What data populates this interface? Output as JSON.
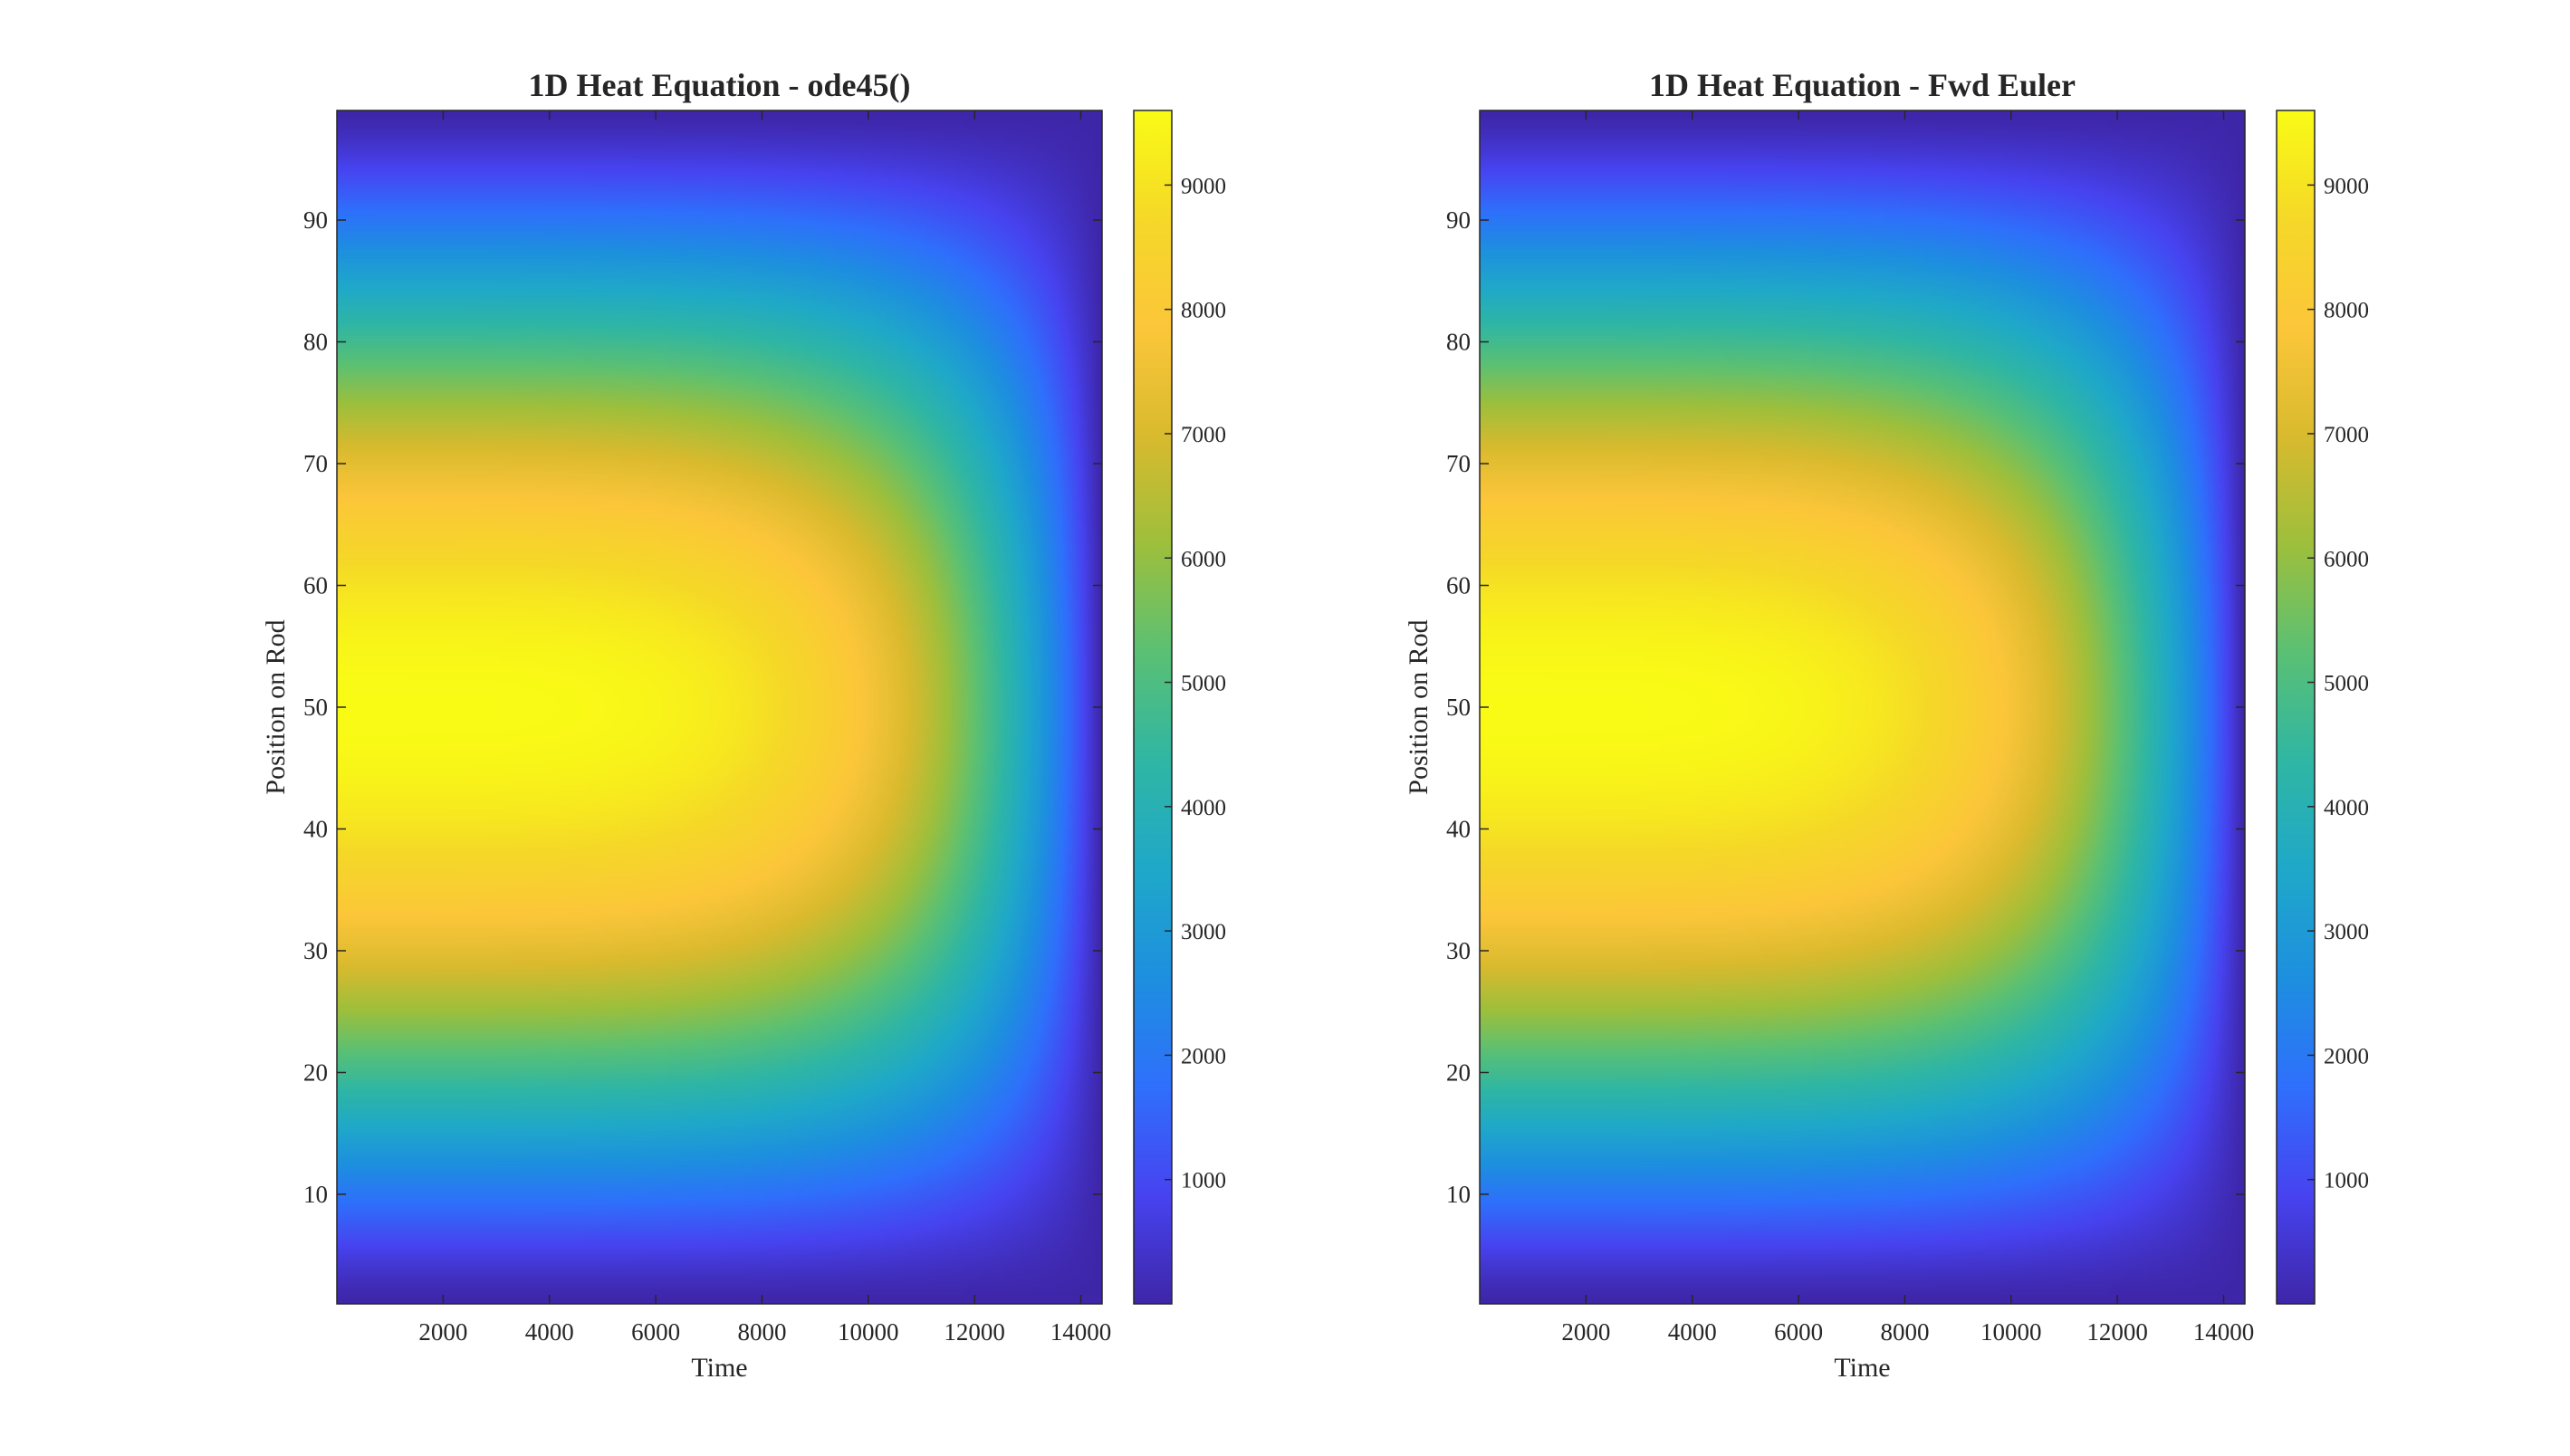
{
  "chart_data": [
    {
      "type": "heatmap",
      "title": "1D Heat Equation - ode45()",
      "xlabel": "Time",
      "ylabel": "Position on Rod",
      "xlim": [
        0,
        14400
      ],
      "ylim": [
        1,
        99
      ],
      "xticks": [
        2000,
        4000,
        6000,
        8000,
        10000,
        12000,
        14000
      ],
      "yticks": [
        10,
        20,
        30,
        40,
        50,
        60,
        70,
        80,
        90
      ],
      "colorbar": {
        "range": [
          0,
          9600
        ],
        "ticks": [
          1000,
          2000,
          3000,
          4000,
          5000,
          6000,
          7000,
          8000,
          9000
        ],
        "colormap": "parula",
        "position": "right"
      },
      "field": {
        "description": "max value at position 50, time 0; decays toward 0 at rod ends (1, 99) and toward final time 14400",
        "peak_value": 9600,
        "peak_position": 50,
        "peak_time": 0,
        "end_value": 0
      }
    },
    {
      "type": "heatmap",
      "title": "1D Heat Equation - Fwd Euler",
      "xlabel": "Time",
      "ylabel": "Position on Rod",
      "xlim": [
        0,
        14400
      ],
      "ylim": [
        1,
        99
      ],
      "xticks": [
        2000,
        4000,
        6000,
        8000,
        10000,
        12000,
        14000
      ],
      "yticks": [
        10,
        20,
        30,
        40,
        50,
        60,
        70,
        80,
        90
      ],
      "colorbar": {
        "range": [
          0,
          9600
        ],
        "ticks": [
          1000,
          2000,
          3000,
          4000,
          5000,
          6000,
          7000,
          8000,
          9000
        ],
        "colormap": "parula",
        "position": "right"
      },
      "field": {
        "description": "max value at position 50, time 0; decays toward 0 at rod ends (1, 99) and toward final time 14400",
        "peak_value": 9600,
        "peak_position": 50,
        "peak_time": 0,
        "end_value": 0
      }
    }
  ],
  "colors": {
    "parula": [
      "#3e26a8",
      "#4743f0",
      "#2f6ffc",
      "#1d8fdf",
      "#1fa8c9",
      "#2fb6a4",
      "#5ac074",
      "#9dbf3c",
      "#d9ba2e",
      "#fcc63a",
      "#f5d828",
      "#f9fb15"
    ],
    "axis": "#262626"
  }
}
